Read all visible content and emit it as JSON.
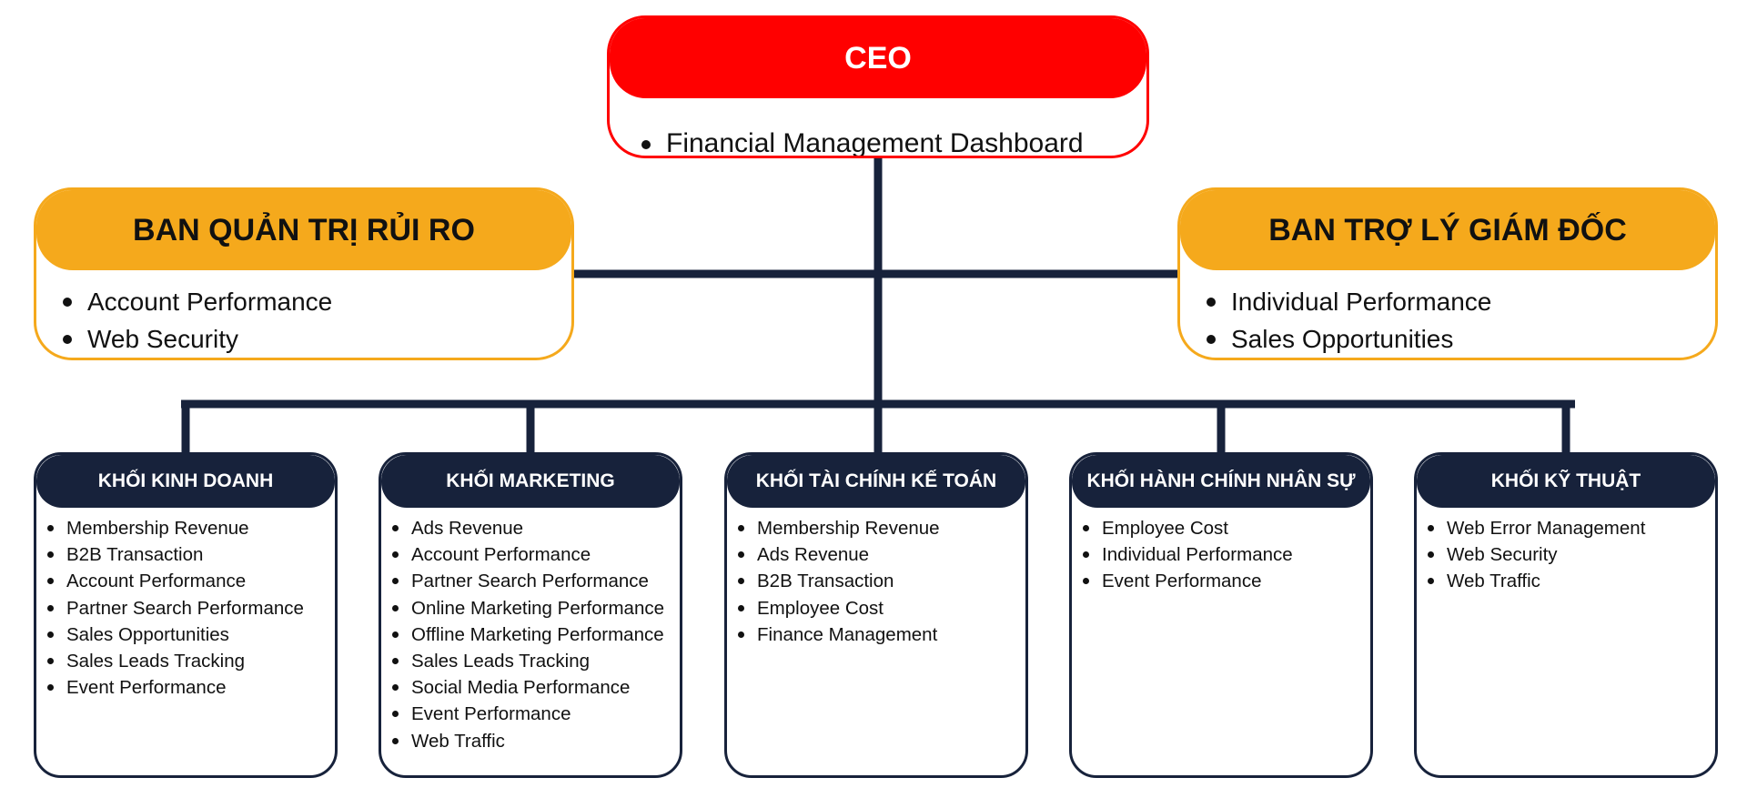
{
  "colors": {
    "ceo": "#ff0000",
    "board": "#f5a91c",
    "division": "#17223b",
    "connector": "#17223b"
  },
  "ceo": {
    "title": "CEO",
    "items": [
      "Financial Management Dashboard"
    ]
  },
  "risk_board": {
    "title": "BAN QUẢN TRỊ RỦI RO",
    "items": [
      "Account Performance",
      "Web Security"
    ]
  },
  "assistant_board": {
    "title": "BAN TRỢ LÝ GIÁM ĐỐC",
    "items": [
      "Individual Performance",
      "Sales Opportunities"
    ]
  },
  "divisions": [
    {
      "title": "KHỐI KINH DOANH",
      "items": [
        "Membership Revenue",
        "B2B Transaction",
        "Account Performance",
        "Partner Search Performance",
        "Sales Opportunities",
        "Sales Leads Tracking",
        "Event Performance"
      ]
    },
    {
      "title": "KHỐI MARKETING",
      "items": [
        "Ads Revenue",
        "Account Performance",
        "Partner Search Performance",
        "Online Marketing Performance",
        "Offline Marketing Performance",
        "Sales Leads Tracking",
        "Social Media Performance",
        "Event Performance",
        "Web Traffic"
      ]
    },
    {
      "title": "KHỐI TÀI CHÍNH KẾ TOÁN",
      "items": [
        "Membership Revenue",
        "Ads Revenue",
        "B2B Transaction",
        "Employee Cost",
        "Finance Management"
      ]
    },
    {
      "title": "KHỐI HÀNH CHÍNH NHÂN SỰ",
      "items": [
        "Employee Cost",
        "Individual Performance",
        "Event Performance"
      ]
    },
    {
      "title": "KHỐI KỸ THUẬT",
      "items": [
        "Web Error Management",
        "Web Security",
        "Web Traffic"
      ]
    }
  ]
}
